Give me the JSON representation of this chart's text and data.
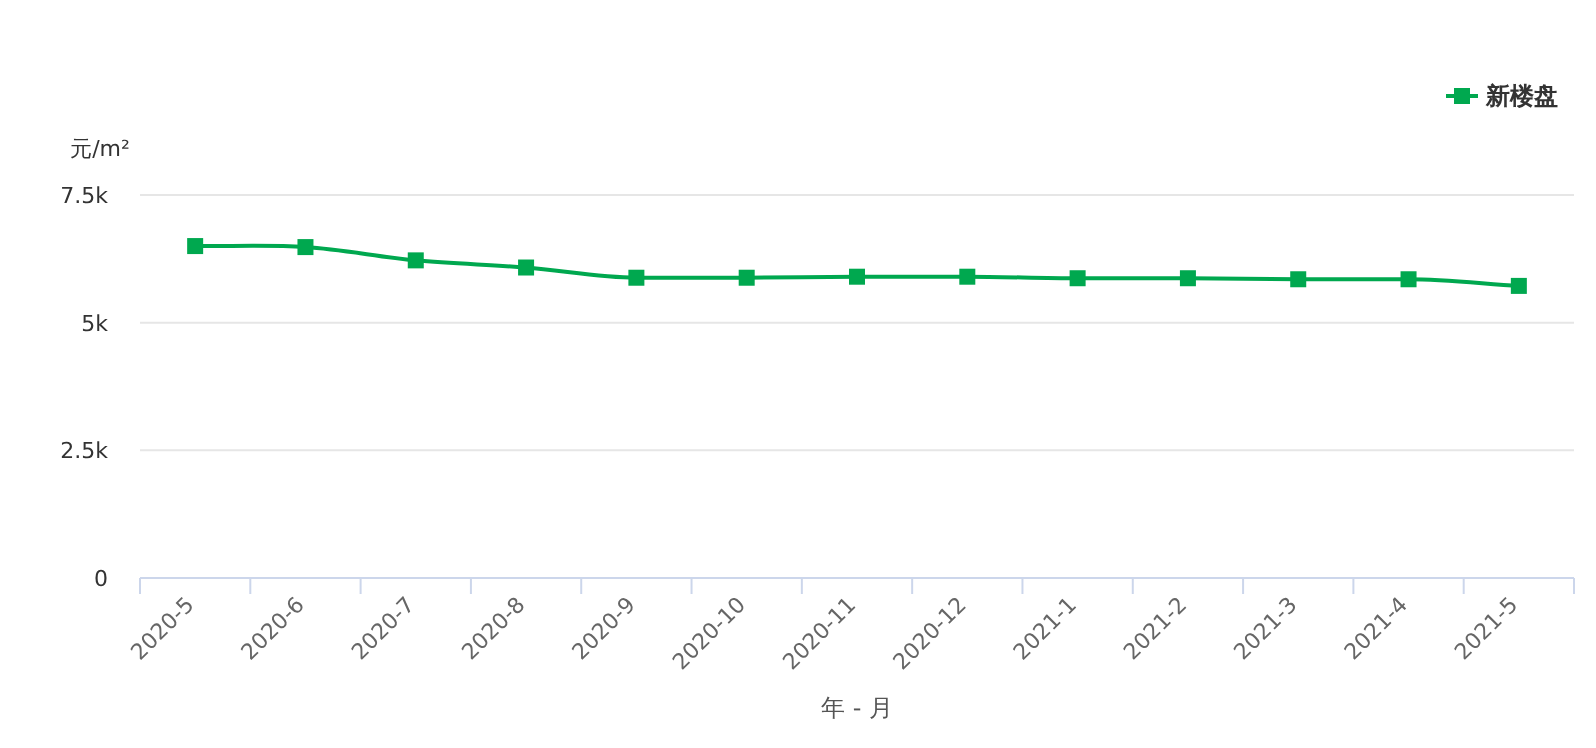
{
  "chart_data": {
    "type": "line",
    "ylabel": "元/m²",
    "xlabel": "年 - 月",
    "categories": [
      "2020-5",
      "2020-6",
      "2020-7",
      "2020-8",
      "2020-9",
      "2020-10",
      "2020-11",
      "2020-12",
      "2021-1",
      "2021-2",
      "2021-3",
      "2021-4",
      "2021-5"
    ],
    "series": [
      {
        "name": "新楼盘",
        "color": "#00a84f",
        "values": [
          6500,
          6480,
          6220,
          6080,
          5880,
          5880,
          5900,
          5900,
          5870,
          5870,
          5850,
          5850,
          5720
        ]
      }
    ],
    "ylim": [
      0,
      7500
    ],
    "yticks": [
      0,
      {
        "value": 2500,
        "label": "2.5k"
      },
      {
        "value": 5000,
        "label": "5k"
      },
      {
        "value": 7500,
        "label": "7.5k"
      }
    ],
    "grid": "y",
    "legend": "top right",
    "marker": "square",
    "line_style": "solid"
  }
}
